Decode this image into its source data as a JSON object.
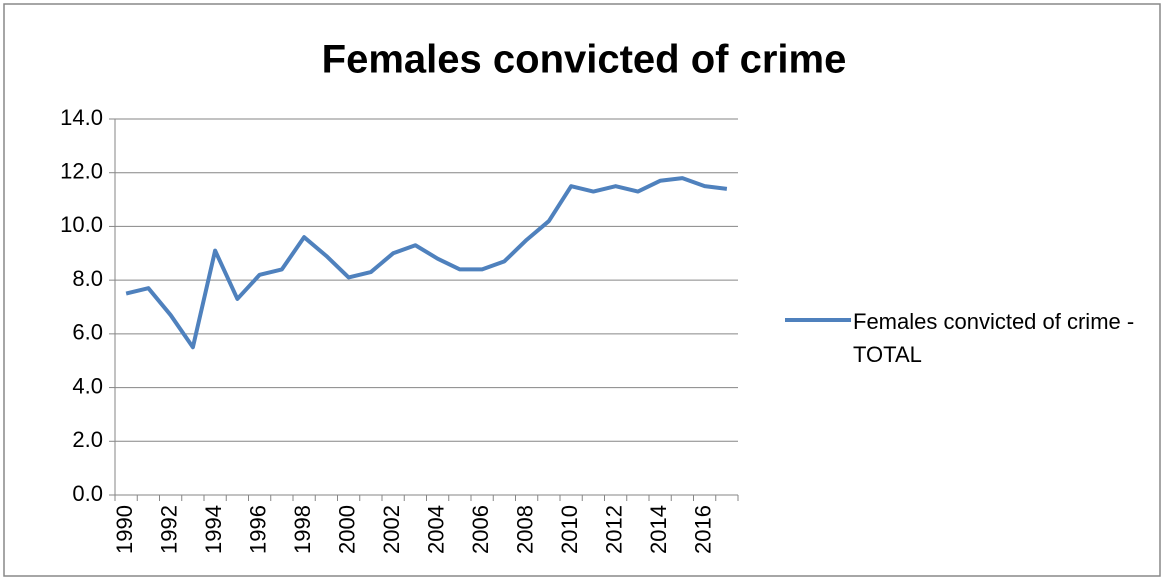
{
  "chart_data": {
    "type": "line",
    "title": "Females convicted of crime",
    "categories": [
      "1990",
      null,
      "1992",
      null,
      "1994",
      null,
      "1996",
      null,
      "1998",
      null,
      "2000",
      null,
      "2002",
      null,
      "2004",
      null,
      "2006",
      null,
      "2008",
      null,
      "2010",
      null,
      "2012",
      null,
      "2014",
      null,
      "2016",
      null
    ],
    "series": [
      {
        "name": "Females convicted of crime - TOTAL",
        "color": "#4f81bd",
        "values": [
          7.5,
          7.7,
          6.7,
          5.5,
          9.1,
          7.3,
          8.2,
          8.4,
          9.6,
          8.9,
          8.1,
          8.3,
          9.0,
          9.3,
          8.8,
          8.4,
          8.4,
          8.7,
          9.5,
          10.2,
          11.5,
          11.3,
          11.5,
          11.3,
          11.7,
          11.8,
          11.5,
          11.4
        ]
      }
    ],
    "ylim": [
      0,
      14
    ],
    "yticks": [
      {
        "value": 0,
        "label": "0.0"
      },
      {
        "value": 2,
        "label": "2.0"
      },
      {
        "value": 4,
        "label": "4.0"
      },
      {
        "value": 6,
        "label": "6.0"
      },
      {
        "value": 8,
        "label": "8.0"
      },
      {
        "value": 10,
        "label": "10.0"
      },
      {
        "value": 12,
        "label": "12.0"
      },
      {
        "value": 14,
        "label": "14.0"
      }
    ],
    "grid": true,
    "legend": "right"
  }
}
